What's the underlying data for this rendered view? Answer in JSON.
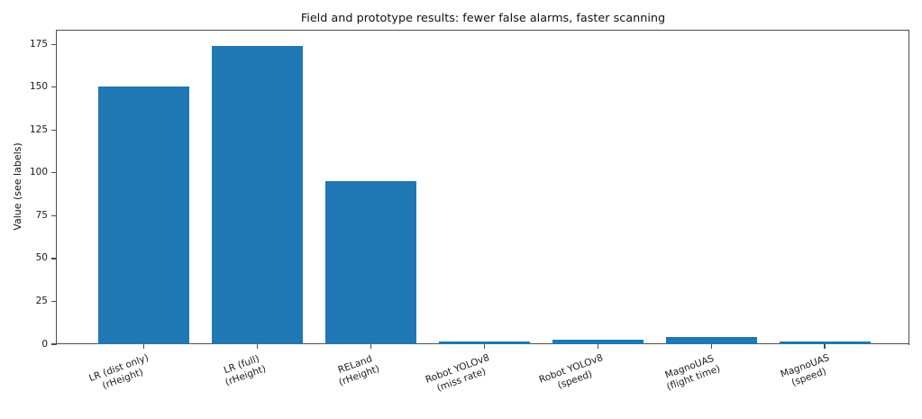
{
  "chart_data": {
    "type": "bar",
    "title": "Field and prototype results: fewer false alarms, faster scanning",
    "xlabel": "",
    "ylabel": "Value (see labels)",
    "categories": [
      "LR (dist only)\n(rHeight)",
      "LR (full)\n(rHeight)",
      "RELand\n(rHeight)",
      "Robot YOLOv8\n(miss rate)",
      "Robot YOLOv8\n(speed)",
      "MagnoUAS\n(flight time)",
      "MagnoUAS\n(speed)"
    ],
    "values": [
      150,
      174,
      95,
      1.5,
      2.5,
      4,
      1.5
    ],
    "yticks": [
      0,
      25,
      50,
      75,
      100,
      125,
      150,
      175
    ],
    "ylim": [
      0,
      183
    ],
    "bar_color": "#1f77b4",
    "spine_color": "#4d4d4d",
    "grid": false,
    "legend": "none",
    "x_label_rotation_deg": 20
  }
}
